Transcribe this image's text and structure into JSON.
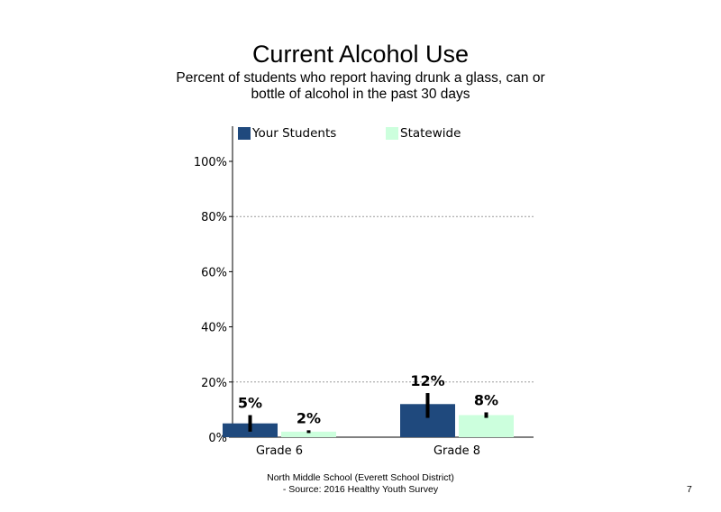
{
  "chart_data": {
    "type": "bar",
    "title": "Current Alcohol Use",
    "subtitle": "Percent of students who report having drunk a glass, can or bottle of alcohol in the past 30 days",
    "categories": [
      "Grade 6",
      "Grade 8"
    ],
    "series": [
      {
        "name": "Your Students",
        "color": "#1f497d",
        "values": [
          5,
          12
        ],
        "labels": [
          "5%",
          "12%"
        ],
        "error_low": [
          2,
          7
        ],
        "error_high": [
          8,
          16
        ]
      },
      {
        "name": "Statewide",
        "color": "#ccffdd",
        "values": [
          2,
          8
        ],
        "labels": [
          "2%",
          "8%"
        ],
        "error_low": [
          1.5,
          7
        ],
        "error_high": [
          2.5,
          9
        ]
      }
    ],
    "ylim": [
      0,
      100
    ],
    "yticks": [
      0,
      20,
      40,
      60,
      80,
      100
    ],
    "ytick_labels": [
      "0%",
      "20%",
      "40%",
      "60%",
      "80%",
      "100%"
    ],
    "grid": "dotted horizontal at 20% and 80%",
    "legend_position": "top"
  },
  "footer": {
    "line1": "North Middle School (Everett School District)",
    "line2": "- Source: 2016 Healthy Youth Survey"
  },
  "page_number": "7"
}
